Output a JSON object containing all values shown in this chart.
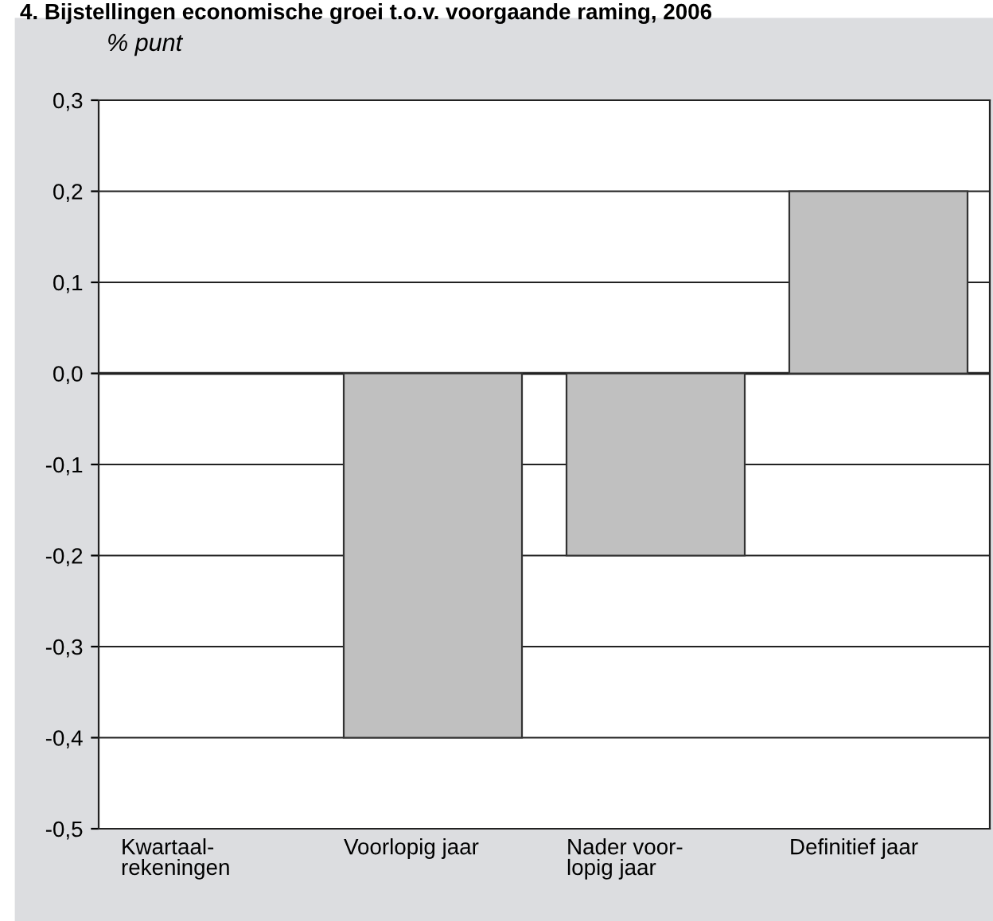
{
  "chart_data": {
    "type": "bar",
    "title": "4. Bijstellingen economische groei t.o.v. voorgaande raming, 2006",
    "ylabel": "% punt",
    "categories": [
      "Kwartaal-\nrekeningen",
      "Voorlopig jaar",
      "Nader voor-\nlopig jaar",
      "Definitief jaar"
    ],
    "values": [
      0.0,
      -0.4,
      -0.2,
      0.2
    ],
    "color": "#c0c0c0",
    "ylim": [
      -0.5,
      0.3
    ],
    "yticks": [
      {
        "value": -0.5,
        "label": "-0,5"
      },
      {
        "value": -0.4,
        "label": "-0,4"
      },
      {
        "value": -0.3,
        "label": "-0,3"
      },
      {
        "value": -0.2,
        "label": "-0,2"
      },
      {
        "value": -0.1,
        "label": "-0,1"
      },
      {
        "value": 0.0,
        "label": "0,0"
      },
      {
        "value": 0.1,
        "label": "0,1"
      },
      {
        "value": 0.2,
        "label": "0,2"
      },
      {
        "value": 0.3,
        "label": "0,3"
      }
    ],
    "grid": "y"
  }
}
